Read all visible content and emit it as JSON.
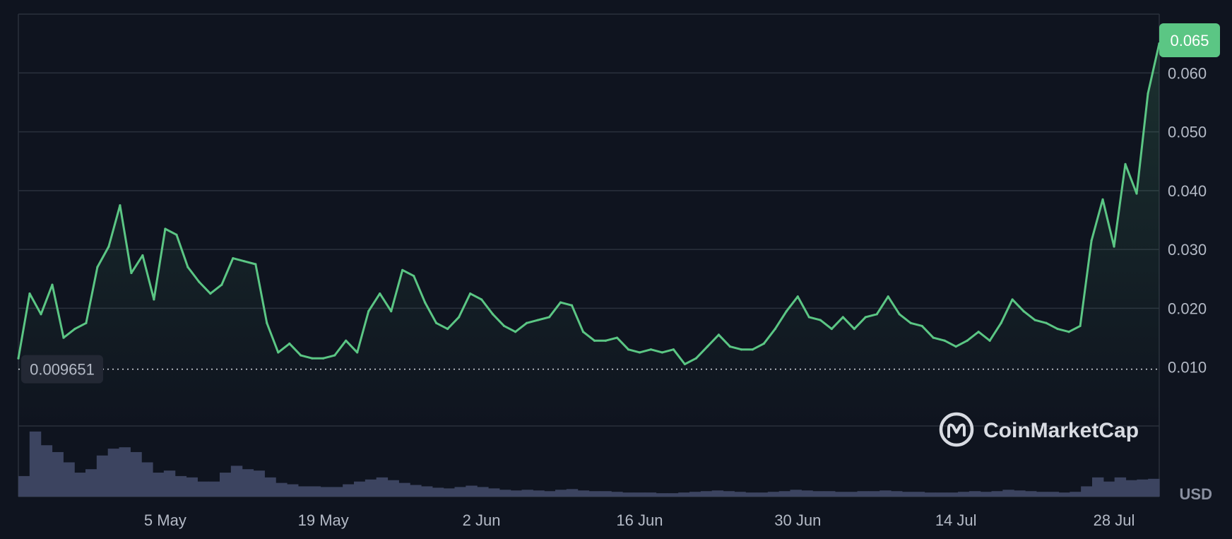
{
  "chart_data": {
    "type": "line",
    "title": "",
    "xlabel": "",
    "ylabel": "",
    "currency_label": "USD",
    "x_tick_labels": [
      "5 May",
      "19 May",
      "2 Jun",
      "16 Jun",
      "30 Jun",
      "14 Jul",
      "28 Jul"
    ],
    "y_tick_labels": [
      "0.060",
      "0.050",
      "0.040",
      "0.030",
      "0.020",
      "0.010"
    ],
    "y_tick_values": [
      0.06,
      0.05,
      0.04,
      0.03,
      0.02,
      0.01
    ],
    "ylim": [
      0.0,
      0.07
    ],
    "grid": true,
    "current_price_label": "0.065",
    "current_price": 0.065,
    "reference_line_label": "0.009651",
    "reference_line_value": 0.009651,
    "watermark": "CoinMarketCap",
    "colors": {
      "background": "#0f141f",
      "line": "#5bc684",
      "grid": "#2a303c",
      "volume": "#3c4460",
      "price_badge": "#5bc684",
      "axis_text": "#b4bac6"
    },
    "series": [
      {
        "x": [
          "22 Apr",
          "23 Apr",
          "24 Apr",
          "25 Apr",
          "26 Apr",
          "27 Apr",
          "28 Apr",
          "29 Apr",
          "30 Apr",
          "1 May",
          "2 May",
          "3 May",
          "4 May",
          "5 May",
          "6 May",
          "7 May",
          "8 May",
          "9 May",
          "10 May",
          "11 May",
          "12 May",
          "13 May",
          "14 May",
          "15 May",
          "16 May",
          "17 May",
          "18 May",
          "19 May",
          "20 May",
          "21 May",
          "22 May",
          "23 May",
          "24 May",
          "25 May",
          "26 May",
          "27 May",
          "28 May",
          "29 May",
          "30 May",
          "31 May",
          "1 Jun",
          "2 Jun",
          "3 Jun",
          "4 Jun",
          "5 Jun",
          "6 Jun",
          "7 Jun",
          "8 Jun",
          "9 Jun",
          "10 Jun",
          "11 Jun",
          "12 Jun",
          "13 Jun",
          "14 Jun",
          "15 Jun",
          "16 Jun",
          "17 Jun",
          "18 Jun",
          "19 Jun",
          "20 Jun",
          "21 Jun",
          "22 Jun",
          "23 Jun",
          "24 Jun",
          "25 Jun",
          "26 Jun",
          "27 Jun",
          "28 Jun",
          "29 Jun",
          "30 Jun",
          "1 Jul",
          "2 Jul",
          "3 Jul",
          "4 Jul",
          "5 Jul",
          "6 Jul",
          "7 Jul",
          "8 Jul",
          "9 Jul",
          "10 Jul",
          "11 Jul",
          "12 Jul",
          "13 Jul",
          "14 Jul",
          "15 Jul",
          "16 Jul",
          "17 Jul",
          "18 Jul",
          "19 Jul",
          "20 Jul",
          "21 Jul",
          "22 Jul",
          "23 Jul",
          "24 Jul",
          "25 Jul",
          "26 Jul",
          "27 Jul",
          "28 Jul",
          "29 Jul",
          "30 Jul",
          "31 Jul",
          "1 Aug"
        ],
        "values": [
          0.0115,
          0.0225,
          0.019,
          0.024,
          0.015,
          0.0165,
          0.0175,
          0.027,
          0.0305,
          0.0375,
          0.026,
          0.029,
          0.0215,
          0.0335,
          0.0325,
          0.027,
          0.0245,
          0.0225,
          0.024,
          0.0285,
          0.028,
          0.0275,
          0.0175,
          0.0125,
          0.014,
          0.012,
          0.0115,
          0.0115,
          0.012,
          0.0145,
          0.0125,
          0.0195,
          0.0225,
          0.0195,
          0.0265,
          0.0255,
          0.021,
          0.0175,
          0.0165,
          0.0185,
          0.0225,
          0.0215,
          0.019,
          0.017,
          0.016,
          0.0175,
          0.018,
          0.0185,
          0.021,
          0.0205,
          0.016,
          0.0145,
          0.0145,
          0.015,
          0.013,
          0.0125,
          0.013,
          0.0125,
          0.013,
          0.0105,
          0.0115,
          0.0135,
          0.0155,
          0.0135,
          0.013,
          0.013,
          0.014,
          0.0165,
          0.0195,
          0.022,
          0.0185,
          0.018,
          0.0165,
          0.0185,
          0.0165,
          0.0185,
          0.019,
          0.022,
          0.019,
          0.0175,
          0.017,
          0.015,
          0.0145,
          0.0135,
          0.0145,
          0.016,
          0.0145,
          0.0175,
          0.0215,
          0.0195,
          0.018,
          0.0175,
          0.0165,
          0.016,
          0.017,
          0.0315,
          0.0385,
          0.0305,
          0.0445,
          0.0395,
          0.0565,
          0.065
        ]
      }
    ],
    "volume": [
      0.3,
      0.95,
      0.75,
      0.65,
      0.5,
      0.35,
      0.4,
      0.6,
      0.7,
      0.72,
      0.65,
      0.5,
      0.35,
      0.38,
      0.3,
      0.28,
      0.22,
      0.22,
      0.35,
      0.45,
      0.4,
      0.38,
      0.28,
      0.2,
      0.18,
      0.15,
      0.15,
      0.14,
      0.14,
      0.18,
      0.22,
      0.25,
      0.28,
      0.24,
      0.2,
      0.17,
      0.15,
      0.13,
      0.12,
      0.14,
      0.16,
      0.14,
      0.12,
      0.1,
      0.09,
      0.1,
      0.09,
      0.08,
      0.1,
      0.11,
      0.09,
      0.08,
      0.08,
      0.07,
      0.06,
      0.06,
      0.06,
      0.05,
      0.05,
      0.06,
      0.07,
      0.08,
      0.09,
      0.08,
      0.07,
      0.06,
      0.06,
      0.07,
      0.08,
      0.1,
      0.09,
      0.08,
      0.08,
      0.07,
      0.07,
      0.08,
      0.08,
      0.09,
      0.08,
      0.07,
      0.07,
      0.06,
      0.06,
      0.06,
      0.07,
      0.08,
      0.07,
      0.08,
      0.1,
      0.09,
      0.08,
      0.07,
      0.07,
      0.06,
      0.07,
      0.15,
      0.28,
      0.22,
      0.28,
      0.24,
      0.25,
      0.26
    ]
  }
}
